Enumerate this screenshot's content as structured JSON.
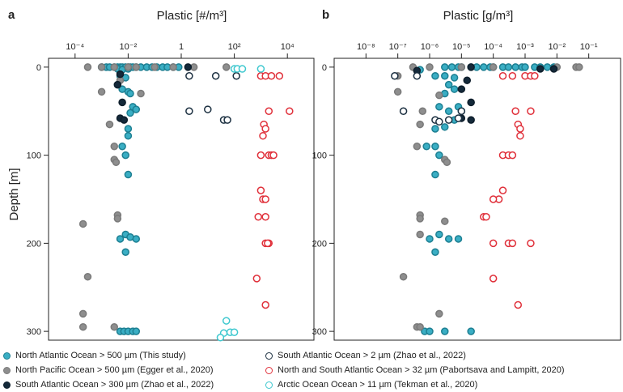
{
  "chart_data": [
    {
      "panel": "a",
      "type": "scatter",
      "xlabel": "Plastic [#/m³]",
      "ylabel": "Depth [m]",
      "x_scale": "log",
      "xlim": [
        1e-05,
        100000
      ],
      "ylim": [
        310,
        -10
      ],
      "x_ticks": [
        0.0001,
        0.01,
        1,
        100,
        10000
      ],
      "x_tick_labels": [
        "10⁻⁴",
        "10⁻²",
        "1",
        "10²",
        "10⁴"
      ],
      "y_ticks": [
        0,
        100,
        200,
        300
      ],
      "series": [
        {
          "name": "North Atlantic Ocean > 500 µm (This study)",
          "points": [
            [
              0.001,
              0
            ],
            [
              0.0015,
              0
            ],
            [
              0.002,
              0
            ],
            [
              0.003,
              0
            ],
            [
              0.004,
              0
            ],
            [
              0.005,
              0
            ],
            [
              0.006,
              0
            ],
            [
              0.008,
              0
            ],
            [
              0.01,
              0
            ],
            [
              0.012,
              0
            ],
            [
              0.015,
              0
            ],
            [
              0.02,
              0
            ],
            [
              0.03,
              0
            ],
            [
              0.05,
              0
            ],
            [
              0.08,
              0
            ],
            [
              0.12,
              0
            ],
            [
              0.2,
              0
            ],
            [
              0.3,
              0
            ],
            [
              0.5,
              0
            ],
            [
              0.8,
              0
            ],
            [
              0.004,
              2
            ],
            [
              0.006,
              3
            ],
            [
              0.01,
              2
            ],
            [
              0.005,
              10
            ],
            [
              0.008,
              12
            ],
            [
              0.004,
              20
            ],
            [
              0.006,
              25
            ],
            [
              0.01,
              28
            ],
            [
              0.012,
              30
            ],
            [
              0.015,
              45
            ],
            [
              0.02,
              48
            ],
            [
              0.012,
              52
            ],
            [
              0.01,
              70
            ],
            [
              0.01,
              78
            ],
            [
              0.006,
              90
            ],
            [
              0.008,
              100
            ],
            [
              0.01,
              122
            ],
            [
              0.008,
              190
            ],
            [
              0.012,
              193
            ],
            [
              0.02,
              195
            ],
            [
              0.005,
              195
            ],
            [
              0.008,
              210
            ],
            [
              0.005,
              300
            ],
            [
              0.007,
              300
            ],
            [
              0.01,
              300
            ],
            [
              0.015,
              300
            ],
            [
              0.02,
              300
            ]
          ]
        },
        {
          "name": "North Pacific Ocean > 500 µm (Egger et al., 2020)",
          "points": [
            [
              0.0003,
              0
            ],
            [
              0.001,
              0
            ],
            [
              0.003,
              0
            ],
            [
              0.01,
              0
            ],
            [
              0.02,
              0
            ],
            [
              0.1,
              0
            ],
            [
              0.5,
              0
            ],
            [
              3,
              0
            ],
            [
              50,
              0
            ],
            [
              0.001,
              28
            ],
            [
              0.005,
              15
            ],
            [
              0.03,
              30
            ],
            [
              0.002,
              65
            ],
            [
              0.003,
              90
            ],
            [
              0.003,
              105
            ],
            [
              0.0035,
              108
            ],
            [
              0.004,
              168
            ],
            [
              0.004,
              172
            ],
            [
              0.0002,
              178
            ],
            [
              0.0003,
              238
            ],
            [
              0.0002,
              280
            ],
            [
              0.0002,
              295
            ],
            [
              0.003,
              295
            ]
          ]
        },
        {
          "name": "South Atlantic Ocean > 300 µm (Zhao et al., 2022)",
          "points": [
            [
              1.8,
              0
            ],
            [
              0.005,
              8
            ],
            [
              0.004,
              20
            ],
            [
              0.006,
              40
            ],
            [
              0.005,
              58
            ],
            [
              0.007,
              60
            ]
          ]
        },
        {
          "name": "South Atlantic Ocean > 2 µm (Zhao et al., 2022)",
          "points": [
            [
              2,
              10
            ],
            [
              20,
              10
            ],
            [
              120,
              10
            ],
            [
              2,
              50
            ],
            [
              10,
              48
            ],
            [
              40,
              60
            ],
            [
              55,
              60
            ]
          ]
        },
        {
          "name": "North and South Atlantic Ocean > 32 µm (Pabortsava and Lampitt, 2020)",
          "points": [
            [
              1000,
              10
            ],
            [
              1500,
              10
            ],
            [
              2500,
              10
            ],
            [
              5000,
              10
            ],
            [
              2000,
              50
            ],
            [
              12000,
              50
            ],
            [
              1300,
              65
            ],
            [
              1500,
              70
            ],
            [
              1200,
              78
            ],
            [
              1000,
              100
            ],
            [
              2000,
              100
            ],
            [
              2500,
              100
            ],
            [
              3000,
              100
            ],
            [
              1000,
              140
            ],
            [
              1200,
              150
            ],
            [
              1500,
              150
            ],
            [
              800,
              170
            ],
            [
              1500,
              170
            ],
            [
              1500,
              200
            ],
            [
              2000,
              200
            ],
            [
              1800,
              200
            ],
            [
              700,
              240
            ],
            [
              1500,
              270
            ]
          ]
        },
        {
          "name": "Arctic Ocean Ocean > 11 µm (Tekman et al., 2020)",
          "points": [
            [
              100,
              2
            ],
            [
              130,
              2
            ],
            [
              200,
              2
            ],
            [
              1000,
              2
            ],
            [
              50,
              288
            ],
            [
              40,
              302
            ],
            [
              70,
              301
            ],
            [
              100,
              301
            ],
            [
              30,
              307
            ]
          ]
        }
      ]
    },
    {
      "panel": "b",
      "type": "scatter",
      "xlabel": "Plastic [g/m³]",
      "ylabel": "",
      "x_scale": "log",
      "xlim": [
        1e-09,
        1
      ],
      "ylim": [
        310,
        -10
      ],
      "x_ticks": [
        1e-08,
        1e-07,
        1e-06,
        1e-05,
        0.0001,
        0.001,
        0.01,
        0.1
      ],
      "x_tick_labels": [
        "10⁻⁸",
        "10⁻⁷",
        "10⁻⁶",
        "10⁻⁵",
        "10⁻⁴",
        "10⁻³",
        "10⁻²",
        "10⁻¹"
      ],
      "y_ticks": [
        0,
        100,
        200,
        300
      ],
      "series": [
        {
          "name": "North Atlantic Ocean > 500 µm (This study)",
          "points": [
            [
              5e-07,
              3
            ],
            [
              3e-06,
              0
            ],
            [
              5e-06,
              0
            ],
            [
              8e-06,
              0
            ],
            [
              1e-05,
              0
            ],
            [
              2e-05,
              0
            ],
            [
              3e-05,
              0
            ],
            [
              5e-05,
              0
            ],
            [
              8e-05,
              0
            ],
            [
              0.0001,
              0
            ],
            [
              0.0002,
              0
            ],
            [
              0.0003,
              0
            ],
            [
              0.0005,
              0
            ],
            [
              0.0008,
              0
            ],
            [
              0.001,
              0
            ],
            [
              0.002,
              0
            ],
            [
              0.003,
              0
            ],
            [
              0.005,
              0
            ],
            [
              0.008,
              0
            ],
            [
              1.5e-06,
              10
            ],
            [
              3e-06,
              10
            ],
            [
              6e-06,
              12
            ],
            [
              4e-06,
              20
            ],
            [
              6e-06,
              25
            ],
            [
              3e-06,
              30
            ],
            [
              2e-06,
              45
            ],
            [
              4e-06,
              50
            ],
            [
              8e-06,
              45
            ],
            [
              1e-05,
              50
            ],
            [
              6e-06,
              60
            ],
            [
              1.5e-06,
              70
            ],
            [
              3e-06,
              68
            ],
            [
              8e-07,
              90
            ],
            [
              1.5e-06,
              90
            ],
            [
              2e-06,
              100
            ],
            [
              1.5e-06,
              122
            ],
            [
              2e-06,
              190
            ],
            [
              4e-06,
              195
            ],
            [
              8e-06,
              195
            ],
            [
              1e-06,
              195
            ],
            [
              1.5e-06,
              210
            ],
            [
              7e-07,
              300
            ],
            [
              1e-06,
              300
            ],
            [
              3e-06,
              300
            ],
            [
              2e-05,
              300
            ]
          ]
        },
        {
          "name": "North Pacific Ocean > 500 µm (Egger et al., 2020)",
          "points": [
            [
              3e-07,
              0
            ],
            [
              1e-06,
              0
            ],
            [
              1e-05,
              0
            ],
            [
              0.0001,
              0
            ],
            [
              0.01,
              0
            ],
            [
              0.04,
              0
            ],
            [
              0.05,
              0
            ],
            [
              1e-07,
              10
            ],
            [
              1e-07,
              28
            ],
            [
              2e-06,
              32
            ],
            [
              6e-07,
              50
            ],
            [
              5e-07,
              65
            ],
            [
              4e-07,
              90
            ],
            [
              3e-06,
              105
            ],
            [
              3.5e-06,
              108
            ],
            [
              5e-07,
              168
            ],
            [
              5e-07,
              172
            ],
            [
              3e-06,
              175
            ],
            [
              5e-07,
              190
            ],
            [
              1.5e-07,
              238
            ],
            [
              2e-06,
              280
            ],
            [
              4e-07,
              295
            ],
            [
              5e-07,
              295
            ]
          ]
        },
        {
          "name": "South Atlantic Ocean > 300 µm (Zhao et al., 2022)",
          "points": [
            [
              4e-07,
              4
            ],
            [
              0.003,
              2
            ],
            [
              0.008,
              2
            ],
            [
              2e-05,
              0
            ],
            [
              1.5e-05,
              15
            ],
            [
              1e-05,
              25
            ],
            [
              2e-05,
              40
            ],
            [
              1e-05,
              58
            ],
            [
              2e-05,
              60
            ]
          ]
        },
        {
          "name": "South Atlantic Ocean > 2 µm (Zhao et al., 2022)",
          "points": [
            [
              8e-08,
              10
            ],
            [
              4e-07,
              10
            ],
            [
              1.5e-07,
              50
            ],
            [
              1.5e-06,
              60
            ],
            [
              2e-06,
              62
            ],
            [
              4e-06,
              60
            ],
            [
              8e-06,
              58
            ],
            [
              1e-05,
              50
            ]
          ]
        },
        {
          "name": "North and South Atlantic Ocean > 32 µm (Pabortsava and Lampitt, 2020)",
          "points": [
            [
              0.0002,
              10
            ],
            [
              0.0004,
              10
            ],
            [
              0.001,
              10
            ],
            [
              0.0015,
              10
            ],
            [
              0.002,
              10
            ],
            [
              0.0005,
              50
            ],
            [
              0.0015,
              50
            ],
            [
              0.0006,
              65
            ],
            [
              0.0007,
              70
            ],
            [
              0.0007,
              78
            ],
            [
              0.0002,
              100
            ],
            [
              0.0003,
              100
            ],
            [
              0.0004,
              100
            ],
            [
              0.0002,
              140
            ],
            [
              0.00015,
              150
            ],
            [
              0.0001,
              150
            ],
            [
              5e-05,
              170
            ],
            [
              6e-05,
              170
            ],
            [
              0.0001,
              200
            ],
            [
              0.0003,
              200
            ],
            [
              0.0004,
              200
            ],
            [
              0.0015,
              200
            ],
            [
              0.0001,
              240
            ],
            [
              0.0006,
              270
            ]
          ]
        },
        {
          "name": "Arctic Ocean Ocean > 11 µm (Tekman et al., 2020)",
          "points": []
        }
      ]
    }
  ],
  "legend": [
    {
      "label": "North Atlantic Ocean > 500 µm (This study)",
      "fill": "#3aaec4",
      "stroke": "#1d7f92"
    },
    {
      "label": "South Atlantic Ocean > 2 µm (Zhao et al., 2022)",
      "fill": "#ffffff",
      "stroke": "#1b2f40"
    },
    {
      "label": "North Pacific Ocean > 500 µm (Egger et al., 2020)",
      "fill": "#8e8e8e",
      "stroke": "#7a7a7a"
    },
    {
      "label": "North and South Atlantic Ocean > 32 µm (Pabortsava and Lampitt, 2020)",
      "fill": "#ffffff",
      "stroke": "#e0303a"
    },
    {
      "label": "South Atlantic Ocean > 300 µm (Zhao et al., 2022)",
      "fill": "#14293a",
      "stroke": "#0e1e2b"
    },
    {
      "label": "Arctic Ocean Ocean > 11 µm (Tekman et al., 2020)",
      "fill": "#ffffff",
      "stroke": "#3ec8cf"
    }
  ],
  "series_styles": [
    {
      "fill": "#3aaec4",
      "stroke": "#1d7f92"
    },
    {
      "fill": "#8e8e8e",
      "stroke": "#7a7a7a"
    },
    {
      "fill": "#14293a",
      "stroke": "#0e1e2b"
    },
    {
      "fill": "#ffffff",
      "stroke": "#1b2f40"
    },
    {
      "fill": "#ffffff",
      "stroke": "#e0303a"
    },
    {
      "fill": "#ffffff",
      "stroke": "#3ec8cf"
    }
  ]
}
